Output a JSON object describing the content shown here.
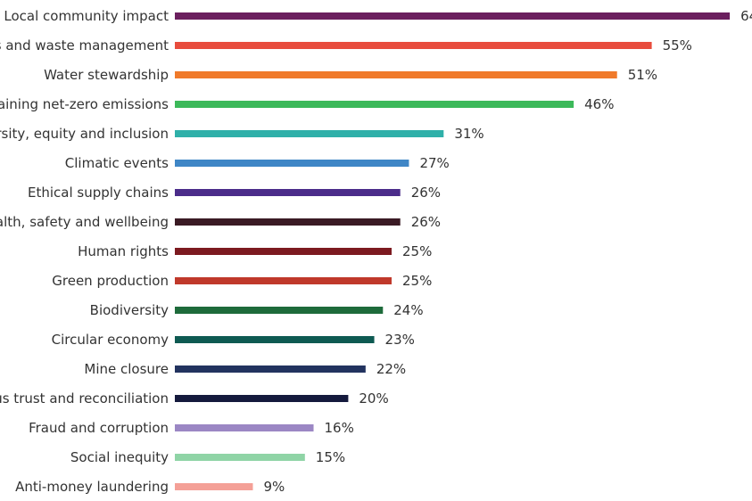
{
  "chart_data": {
    "type": "bar",
    "orientation": "horizontal",
    "categories": [
      "Local community impact",
      "s and waste management",
      "Water stewardship",
      "aining net-zero emissions",
      "rsity, equity and inclusion",
      "Climatic events",
      "Ethical supply chains",
      "alth, safety and wellbeing",
      "Human rights",
      "Green production",
      "Biodiversity",
      "Circular economy",
      "Mine closure",
      "us trust and reconciliation",
      "Fraud and corruption",
      "Social inequity",
      "Anti-money laundering"
    ],
    "values": [
      64,
      55,
      51,
      46,
      31,
      27,
      26,
      26,
      25,
      25,
      24,
      23,
      22,
      20,
      16,
      15,
      9
    ],
    "value_labels": [
      "64",
      "55%",
      "51%",
      "46%",
      "31%",
      "27%",
      "26%",
      "26%",
      "25%",
      "25%",
      "24%",
      "23%",
      "22%",
      "20%",
      "16%",
      "15%",
      "9%"
    ],
    "colors": [
      "#6b1f5e",
      "#e84c3d",
      "#f07a2a",
      "#3cb95a",
      "#2fb0a9",
      "#3f86c6",
      "#4b2c8a",
      "#3a1a24",
      "#7c1a20",
      "#c0392b",
      "#1e6b3b",
      "#0e5a52",
      "#22335f",
      "#151a3d",
      "#9b87c4",
      "#8fd4a6",
      "#f4a097"
    ],
    "grid": false,
    "legend": "none"
  }
}
